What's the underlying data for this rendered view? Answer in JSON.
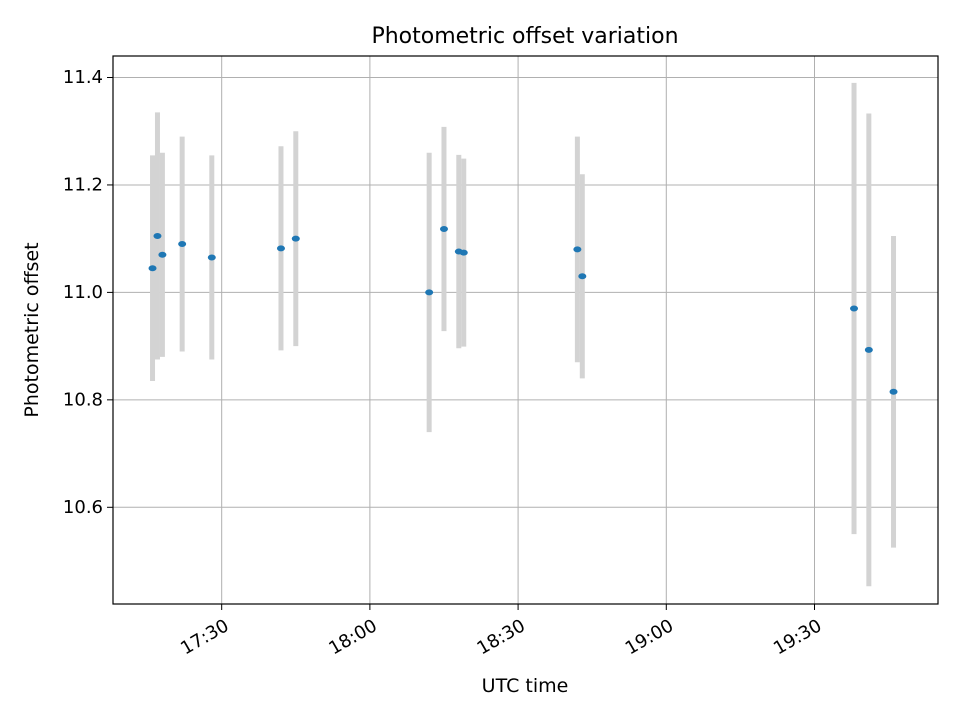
{
  "chart_data": {
    "type": "scatter",
    "title": "Photometric offset variation",
    "xlabel": "UTC time",
    "ylabel": "Photometric offset",
    "x_ticks": [
      "17:30",
      "18:00",
      "18:30",
      "19:00",
      "19:30"
    ],
    "y_ticks": [
      "10.6",
      "10.8",
      "11.0",
      "11.2",
      "11.4"
    ],
    "xlim": [
      "17:08",
      "19:55"
    ],
    "ylim": [
      10.42,
      11.44
    ],
    "grid": true,
    "colors": {
      "point": "#1f77b4",
      "errorbar": "#d3d3d3",
      "grid": "#b0b0b0"
    },
    "points": [
      {
        "x": "17:16",
        "y": 11.045,
        "err": 0.21
      },
      {
        "x": "17:17",
        "y": 11.105,
        "err": 0.23
      },
      {
        "x": "17:18",
        "y": 11.07,
        "err": 0.19
      },
      {
        "x": "17:22",
        "y": 11.09,
        "err": 0.2
      },
      {
        "x": "17:28",
        "y": 11.065,
        "err": 0.19
      },
      {
        "x": "17:42",
        "y": 11.082,
        "err": 0.19
      },
      {
        "x": "17:45",
        "y": 11.1,
        "err": 0.2
      },
      {
        "x": "18:12",
        "y": 11.0,
        "err": 0.26
      },
      {
        "x": "18:15",
        "y": 11.118,
        "err": 0.19
      },
      {
        "x": "18:18",
        "y": 11.076,
        "err": 0.18
      },
      {
        "x": "18:19",
        "y": 11.074,
        "err": 0.175
      },
      {
        "x": "18:42",
        "y": 11.08,
        "err": 0.21
      },
      {
        "x": "18:43",
        "y": 11.03,
        "err": 0.19
      },
      {
        "x": "19:38",
        "y": 10.97,
        "err": 0.42
      },
      {
        "x": "19:41",
        "y": 10.893,
        "err": 0.44
      },
      {
        "x": "19:46",
        "y": 10.815,
        "err": 0.29
      }
    ]
  }
}
